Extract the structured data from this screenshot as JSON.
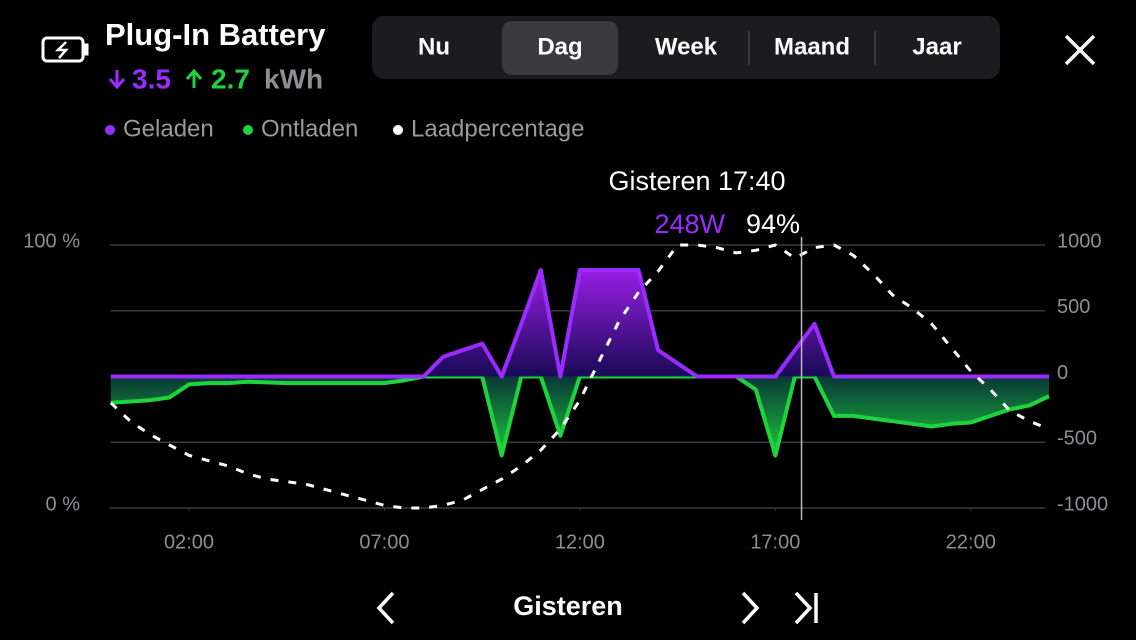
{
  "header": {
    "title": "Plug-In Battery",
    "charged": "3.5",
    "discharged": "2.7",
    "unit": "kWh"
  },
  "tabs": [
    {
      "label": "Nu",
      "selected": false
    },
    {
      "label": "Dag",
      "selected": true
    },
    {
      "label": "Week",
      "selected": false
    },
    {
      "label": "Maand",
      "selected": false
    },
    {
      "label": "Jaar",
      "selected": false
    }
  ],
  "chart_data": {
    "type": "line",
    "x": [
      0,
      0.5,
      1,
      1.5,
      2,
      2.5,
      3,
      3.5,
      4,
      4.5,
      5,
      5.5,
      6,
      6.5,
      7,
      7.5,
      8,
      8.5,
      9,
      9.5,
      10,
      10.5,
      11,
      11.5,
      12,
      12.5,
      13,
      13.5,
      14,
      14.5,
      15,
      15.5,
      16,
      16.5,
      17,
      17.5,
      18,
      18.5,
      19,
      19.5,
      20,
      20.5,
      21,
      21.5,
      22,
      22.5,
      23,
      23.5,
      24
    ],
    "xlim": [
      0,
      24
    ],
    "xticks": [
      {
        "value": 2,
        "label": "02:00"
      },
      {
        "value": 7,
        "label": "07:00"
      },
      {
        "value": 12,
        "label": "12:00"
      },
      {
        "value": 17,
        "label": "17:00"
      },
      {
        "value": 22,
        "label": "22:00"
      }
    ],
    "ylim": [
      0,
      100
    ],
    "yticks": [
      {
        "value": 0,
        "label": "0 %"
      },
      {
        "value": 100,
        "label": "100 %"
      }
    ],
    "y2lim": [
      -1000,
      1000
    ],
    "y2ticks": [
      1000,
      500,
      0,
      -500,
      -1000
    ],
    "grid": true,
    "series": [
      {
        "name": "Geladen",
        "color": "#9b2cff",
        "axis": "y2",
        "fill": true,
        "values": [
          0,
          0,
          0,
          0,
          0,
          0,
          0,
          0,
          0,
          0,
          0,
          0,
          0,
          0,
          0,
          0,
          0,
          150,
          200,
          250,
          0,
          400,
          810,
          0,
          810,
          810,
          810,
          810,
          200,
          100,
          0,
          0,
          0,
          0,
          0,
          200,
          400,
          0,
          0,
          0,
          0,
          0,
          0,
          0,
          0,
          0,
          0,
          0,
          0
        ]
      },
      {
        "name": "Ontladen",
        "color": "#1ed43c",
        "axis": "y2",
        "fill": true,
        "values": [
          -200,
          -190,
          -180,
          -160,
          -60,
          -50,
          -50,
          -40,
          -45,
          -50,
          -50,
          -50,
          -50,
          -50,
          -50,
          -30,
          0,
          0,
          0,
          0,
          -600,
          0,
          0,
          -450,
          0,
          0,
          0,
          0,
          0,
          0,
          0,
          0,
          0,
          -100,
          -600,
          0,
          0,
          -300,
          -300,
          -320,
          -340,
          -360,
          -380,
          -360,
          -350,
          -300,
          -250,
          -220,
          -150
        ]
      },
      {
        "name": "Laadpercentage",
        "color": "#ffffff",
        "dash": true,
        "values": [
          40,
          33,
          28,
          24,
          20,
          18,
          16,
          13,
          11,
          10,
          9,
          7,
          5,
          3,
          1,
          0,
          0,
          1,
          3,
          7,
          11,
          16,
          22,
          30,
          41,
          56,
          71,
          82,
          90,
          100,
          100,
          99,
          97,
          98,
          100,
          95,
          99,
          100,
          96,
          89,
          81,
          76,
          70,
          61,
          52,
          45,
          37,
          33,
          30
        ]
      }
    ],
    "cursor": {
      "x": 17.67,
      "title": "Gisteren 17:40",
      "power": "248W",
      "soc": "94%"
    }
  },
  "footer": {
    "label": "Gisteren"
  }
}
